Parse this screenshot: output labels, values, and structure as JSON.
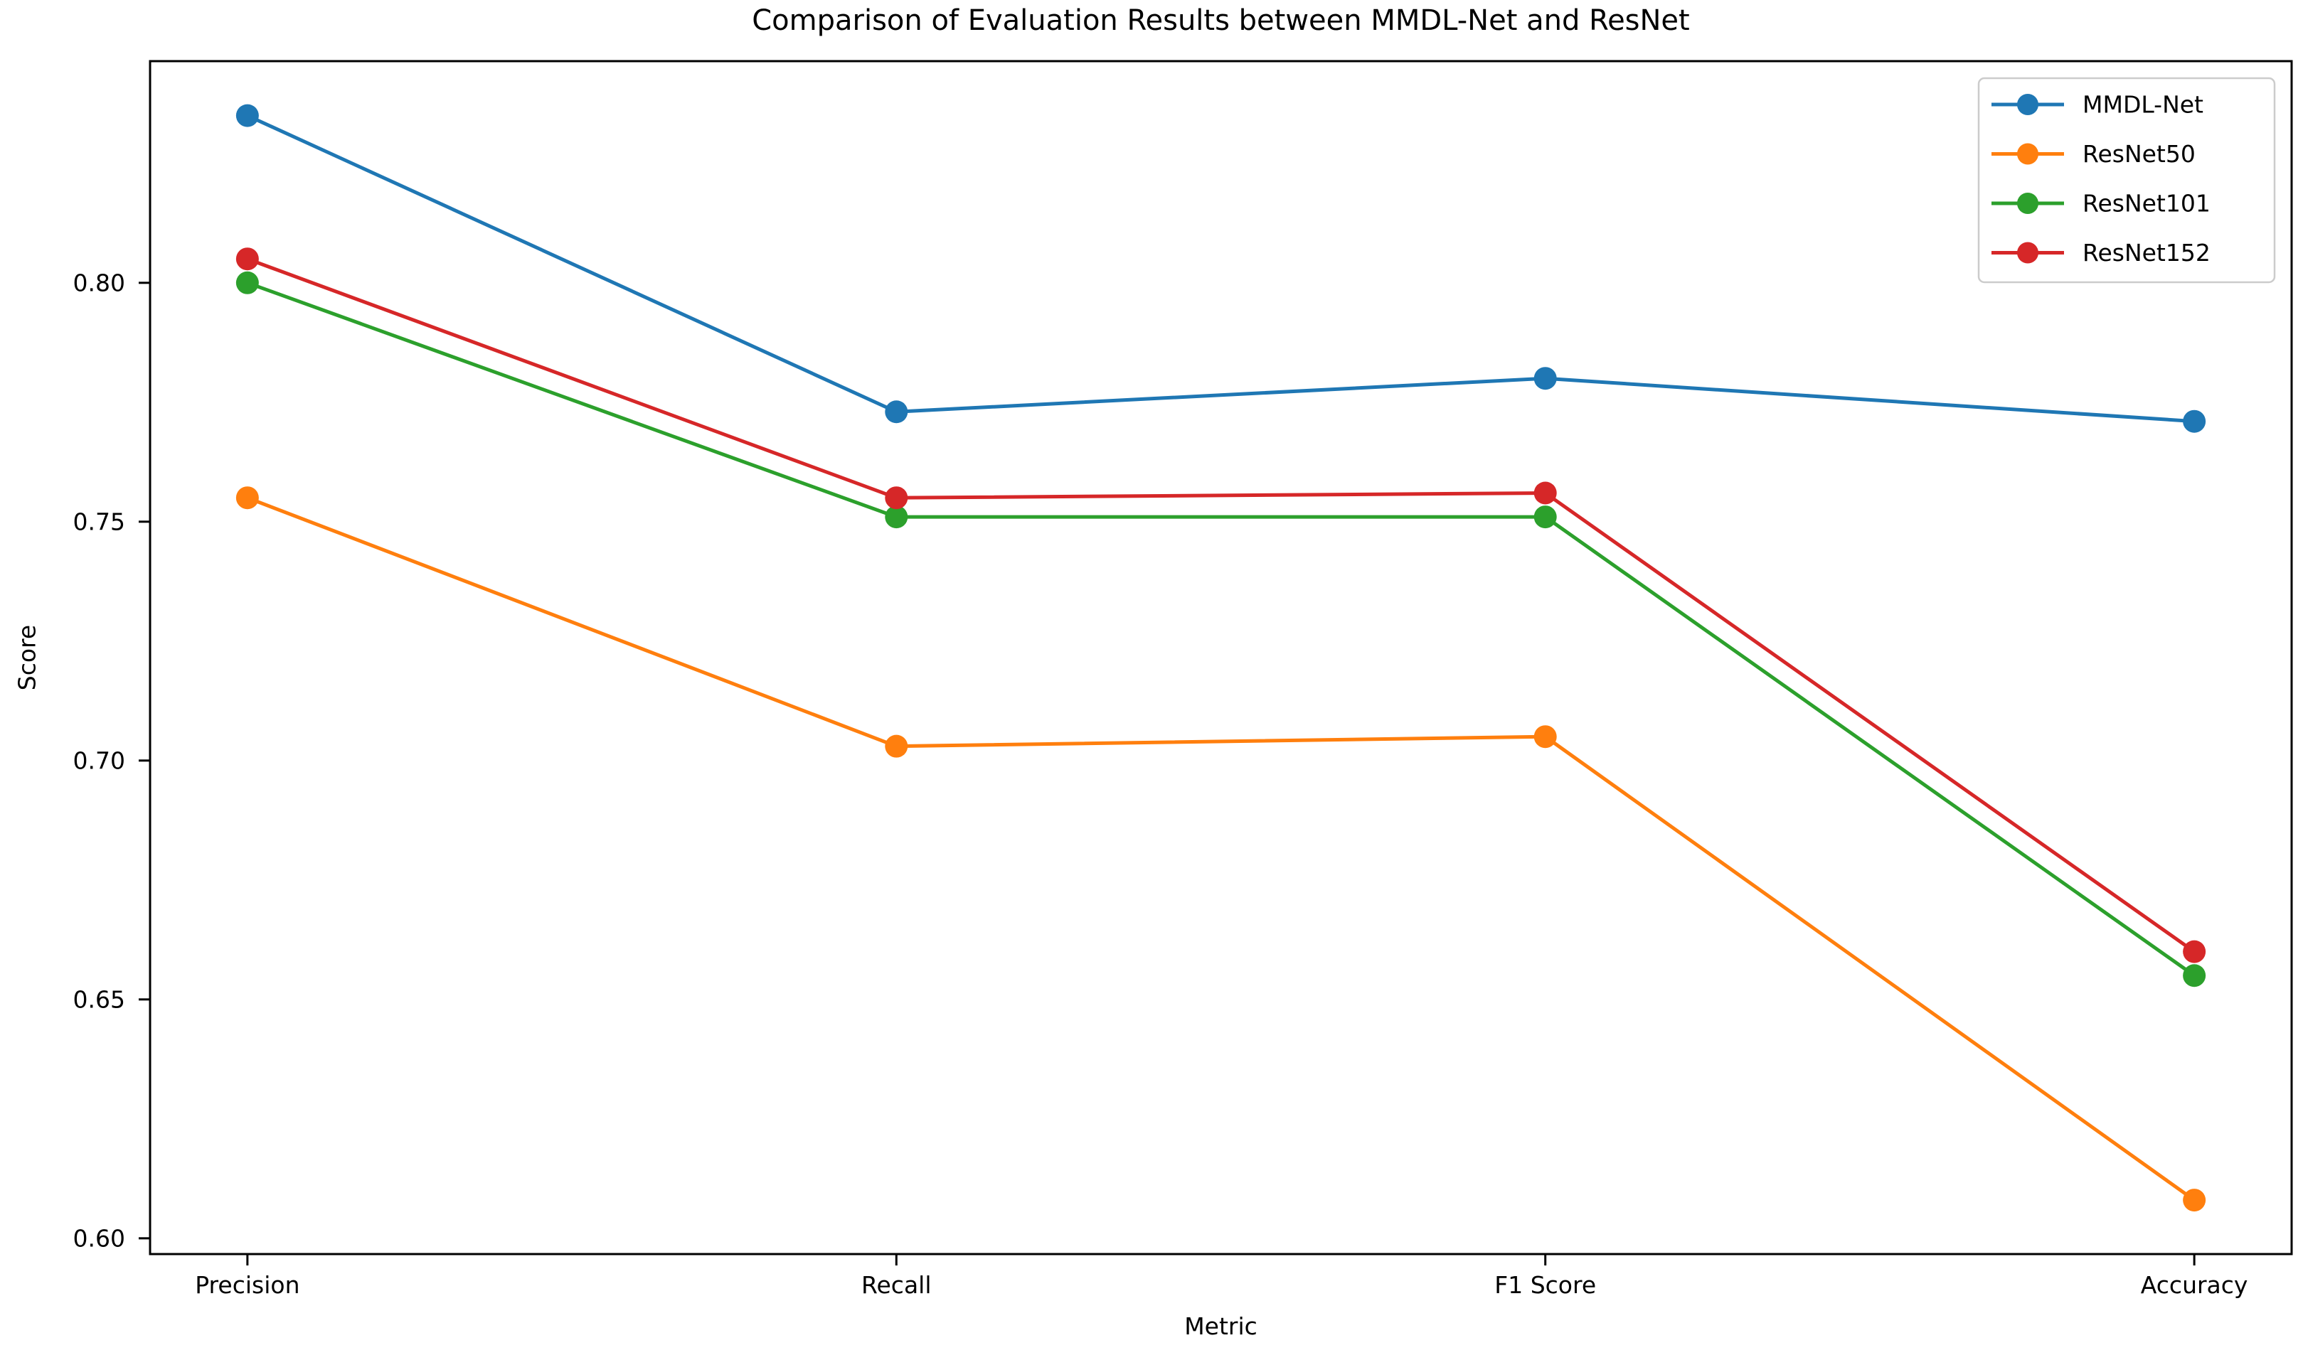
{
  "title": "Comparison of Evaluation Results between MMDL-Net and ResNet",
  "chart_data": {
    "type": "line",
    "title": "Comparison of Evaluation Results between MMDL-Net and ResNet",
    "xlabel": "Metric",
    "ylabel": "Score",
    "categories": [
      "Precision",
      "Recall",
      "F1 Score",
      "Accuracy"
    ],
    "series": [
      {
        "name": "MMDL-Net",
        "color": "#1f77b4",
        "values": [
          0.835,
          0.773,
          0.78,
          0.771
        ]
      },
      {
        "name": "ResNet50",
        "color": "#ff7f0e",
        "values": [
          0.755,
          0.703,
          0.705,
          0.608
        ]
      },
      {
        "name": "ResNet101",
        "color": "#2ca02c",
        "values": [
          0.8,
          0.751,
          0.751,
          0.655
        ]
      },
      {
        "name": "ResNet152",
        "color": "#d62728",
        "values": [
          0.805,
          0.755,
          0.756,
          0.66
        ]
      }
    ],
    "y_ticks": [
      "0.60",
      "0.65",
      "0.70",
      "0.75",
      "0.80"
    ],
    "ylim": [
      0.5967,
      0.8464
    ],
    "grid": false,
    "marker": "o",
    "legend_position": "upper right",
    "legend_border_color": "#cccccc",
    "axis_color": "#000000",
    "background_color": "#ffffff"
  }
}
